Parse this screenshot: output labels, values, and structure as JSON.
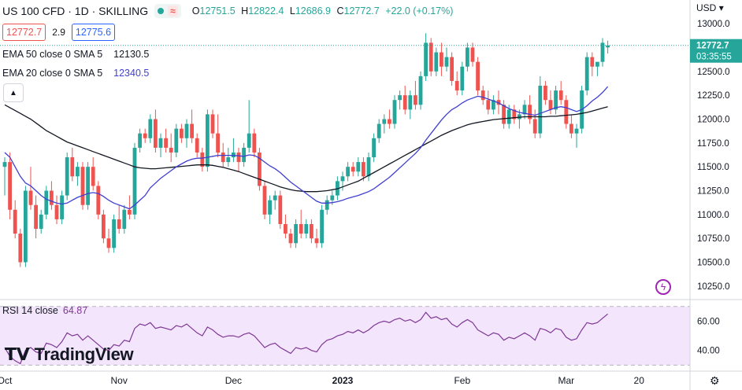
{
  "header": {
    "symbol": "US 100 CFD · 1D · SKILLING",
    "open_label": "O",
    "open": "12751.5",
    "high_label": "H",
    "high": "12822.4",
    "low_label": "L",
    "low": "12686.9",
    "close_label": "C",
    "close": "12772.7",
    "change": "+22.0 (+0.17%)",
    "sell_price": "12772.7",
    "spread": "2.9",
    "buy_price": "12775.6"
  },
  "indicators": {
    "ema50_label": "EMA 50 close 0 SMA 5",
    "ema50_value": "12130.5",
    "ema20_label": "EMA 20 close 0 SMA 5",
    "ema20_value": "12340.5",
    "rsi_label": "RSI 14 close",
    "rsi_value": "64.87"
  },
  "price_axis": {
    "currency": "USD",
    "last_price": "12772.7",
    "countdown": "03:35:55"
  },
  "branding": "TradingView",
  "colors": {
    "up": "#26a69a",
    "down": "#ef5350",
    "ema20": "#3f3fd0",
    "ema50": "#131722",
    "rsi": "#7e3896",
    "rsi_band": "#f3e5fb"
  },
  "chart_data": {
    "type": "candlestick",
    "title": "US 100 CFD · 1D · SKILLING",
    "ylim": [
      10150,
      13100
    ],
    "yticks": [
      10250,
      10500,
      10750,
      11000,
      11250,
      11500,
      11750,
      12000,
      12250,
      12500,
      12750,
      13000
    ],
    "ytick_labels": [
      "10250.0",
      "10500.0",
      "10750.0",
      "11000.0",
      "11250.0",
      "11500.0",
      "11750.0",
      "12000.0",
      "12250.0",
      "12500.0",
      "12750.0",
      "13000.0"
    ],
    "xtick_labels": [
      {
        "label": "Oct",
        "index": 0
      },
      {
        "label": "Nov",
        "index": 22
      },
      {
        "label": "Dec",
        "index": 44
      },
      {
        "label": "2023",
        "index": 65
      },
      {
        "label": "Feb",
        "index": 88
      },
      {
        "label": "Mar",
        "index": 108
      },
      {
        "label": "20",
        "index": 122
      }
    ],
    "ohlc": [
      [
        11500,
        11600,
        11200,
        11550
      ],
      [
        11550,
        11650,
        10950,
        11050
      ],
      [
        11050,
        11150,
        10750,
        10800
      ],
      [
        10800,
        10850,
        10450,
        10500
      ],
      [
        10500,
        11300,
        10450,
        11250
      ],
      [
        11250,
        11500,
        11050,
        11100
      ],
      [
        11100,
        11200,
        10750,
        10850
      ],
      [
        10850,
        11050,
        10800,
        11000
      ],
      [
        11000,
        11300,
        10950,
        11250
      ],
      [
        11250,
        11350,
        11050,
        11100
      ],
      [
        11100,
        11200,
        10900,
        10950
      ],
      [
        10950,
        11250,
        10900,
        11200
      ],
      [
        11200,
        11650,
        11150,
        11600
      ],
      [
        11600,
        11700,
        11350,
        11400
      ],
      [
        11400,
        11550,
        11300,
        11500
      ],
      [
        11500,
        11550,
        11050,
        11100
      ],
      [
        11100,
        11550,
        11050,
        11500
      ],
      [
        11500,
        11600,
        11250,
        11300
      ],
      [
        11300,
        11350,
        10950,
        11000
      ],
      [
        11000,
        11050,
        10700,
        10750
      ],
      [
        10750,
        10850,
        10600,
        10650
      ],
      [
        10650,
        11000,
        10600,
        10950
      ],
      [
        10950,
        11100,
        10800,
        10850
      ],
      [
        10850,
        11100,
        10800,
        11050
      ],
      [
        11050,
        11200,
        10950,
        11000
      ],
      [
        11000,
        11750,
        10950,
        11700
      ],
      [
        11700,
        11900,
        11650,
        11850
      ],
      [
        11850,
        11900,
        11750,
        11800
      ],
      [
        11800,
        12050,
        11750,
        12000
      ],
      [
        12000,
        12100,
        11650,
        11700
      ],
      [
        11700,
        11850,
        11600,
        11800
      ],
      [
        11800,
        11900,
        11650,
        11700
      ],
      [
        11700,
        11850,
        11550,
        11650
      ],
      [
        11650,
        11950,
        11600,
        11900
      ],
      [
        11900,
        11950,
        11750,
        11800
      ],
      [
        11800,
        12000,
        11700,
        11950
      ],
      [
        11950,
        12100,
        11750,
        11800
      ],
      [
        11800,
        11850,
        11600,
        11650
      ],
      [
        11650,
        11700,
        11450,
        11500
      ],
      [
        11500,
        12100,
        11450,
        12050
      ],
      [
        12050,
        12100,
        11800,
        11850
      ],
      [
        11850,
        12050,
        11600,
        11650
      ],
      [
        11650,
        11750,
        11500,
        11550
      ],
      [
        11550,
        11700,
        11500,
        11600
      ],
      [
        11600,
        11800,
        11550,
        11650
      ],
      [
        11650,
        11700,
        11450,
        11550
      ],
      [
        11550,
        11750,
        11500,
        11700
      ],
      [
        11700,
        12200,
        11650,
        11850
      ],
      [
        11850,
        11900,
        11600,
        11650
      ],
      [
        11650,
        11700,
        11250,
        11300
      ],
      [
        11300,
        11350,
        10950,
        11000
      ],
      [
        11000,
        11200,
        10900,
        11150
      ],
      [
        11150,
        11250,
        11050,
        11200
      ],
      [
        11200,
        11250,
        10850,
        10900
      ],
      [
        10900,
        11000,
        10750,
        10800
      ],
      [
        10800,
        10850,
        10650,
        10700
      ],
      [
        10700,
        10950,
        10650,
        10900
      ],
      [
        10900,
        11050,
        10750,
        10800
      ],
      [
        10800,
        10950,
        10750,
        10900
      ],
      [
        10900,
        10950,
        10700,
        10750
      ],
      [
        10750,
        10850,
        10650,
        10700
      ],
      [
        10700,
        11100,
        10650,
        11050
      ],
      [
        11050,
        11200,
        11000,
        11150
      ],
      [
        11150,
        11250,
        11100,
        11200
      ],
      [
        11200,
        11400,
        11150,
        11350
      ],
      [
        11350,
        11450,
        11250,
        11400
      ],
      [
        11400,
        11550,
        11350,
        11500
      ],
      [
        11500,
        11550,
        11400,
        11450
      ],
      [
        11450,
        11600,
        11400,
        11550
      ],
      [
        11550,
        11600,
        11350,
        11400
      ],
      [
        11400,
        11650,
        11350,
        11600
      ],
      [
        11600,
        11850,
        11550,
        11800
      ],
      [
        11800,
        12000,
        11750,
        11950
      ],
      [
        11950,
        12050,
        11850,
        12000
      ],
      [
        12000,
        12100,
        11900,
        11950
      ],
      [
        11950,
        12250,
        11900,
        12200
      ],
      [
        12200,
        12300,
        12100,
        12250
      ],
      [
        12250,
        12350,
        12050,
        12100
      ],
      [
        12100,
        12300,
        12000,
        12250
      ],
      [
        12250,
        12400,
        12100,
        12150
      ],
      [
        12150,
        12500,
        12100,
        12450
      ],
      [
        12450,
        12900,
        12400,
        12800
      ],
      [
        12800,
        12850,
        12450,
        12500
      ],
      [
        12500,
        12750,
        12450,
        12700
      ],
      [
        12700,
        12800,
        12450,
        12550
      ],
      [
        12550,
        12750,
        12500,
        12650
      ],
      [
        12650,
        12700,
        12350,
        12400
      ],
      [
        12400,
        12500,
        12250,
        12300
      ],
      [
        12300,
        12600,
        12250,
        12550
      ],
      [
        12550,
        12800,
        12500,
        12750
      ],
      [
        12750,
        12800,
        12550,
        12600
      ],
      [
        12600,
        12650,
        12250,
        12300
      ],
      [
        12300,
        12350,
        12150,
        12200
      ],
      [
        12200,
        12300,
        12050,
        12100
      ],
      [
        12100,
        12250,
        12050,
        12200
      ],
      [
        12200,
        12300,
        12050,
        12150
      ],
      [
        12150,
        12200,
        11900,
        11950
      ],
      [
        11950,
        12150,
        11900,
        12100
      ],
      [
        12100,
        12150,
        11950,
        12000
      ],
      [
        12000,
        12100,
        11900,
        12050
      ],
      [
        12050,
        12200,
        12000,
        12150
      ],
      [
        12150,
        12250,
        11950,
        12000
      ],
      [
        12000,
        12100,
        11800,
        11850
      ],
      [
        11850,
        12450,
        11800,
        12350
      ],
      [
        12350,
        12400,
        12150,
        12200
      ],
      [
        12200,
        12300,
        12050,
        12100
      ],
      [
        12100,
        12350,
        12050,
        12300
      ],
      [
        12300,
        12400,
        12150,
        12200
      ],
      [
        12200,
        12250,
        11900,
        11950
      ],
      [
        11950,
        12050,
        11800,
        11850
      ],
      [
        11850,
        11950,
        11700,
        11900
      ],
      [
        11900,
        12350,
        11850,
        12300
      ],
      [
        12300,
        12700,
        12250,
        12650
      ],
      [
        12650,
        12700,
        12450,
        12550
      ],
      [
        12550,
        12600,
        12450,
        12600
      ],
      [
        12600,
        12850,
        12550,
        12800
      ],
      [
        12751.5,
        12822.4,
        12686.9,
        12772.7
      ]
    ],
    "series": [
      {
        "name": "EMA 50 close 0 SMA 5",
        "values": [
          12150,
          12120,
          12090,
          12060,
          12030,
          12000,
          11960,
          11920,
          11880,
          11850,
          11820,
          11790,
          11760,
          11740,
          11720,
          11700,
          11680,
          11660,
          11640,
          11620,
          11600,
          11580,
          11560,
          11540,
          11520,
          11500,
          11490,
          11485,
          11480,
          11480,
          11485,
          11490,
          11495,
          11500,
          11505,
          11510,
          11515,
          11520,
          11520,
          11520,
          11515,
          11505,
          11495,
          11480,
          11465,
          11450,
          11430,
          11410,
          11390,
          11370,
          11350,
          11330,
          11310,
          11290,
          11275,
          11260,
          11250,
          11245,
          11240,
          11240,
          11240,
          11245,
          11250,
          11260,
          11270,
          11290,
          11310,
          11330,
          11350,
          11380,
          11410,
          11440,
          11470,
          11500,
          11530,
          11560,
          11590,
          11620,
          11650,
          11680,
          11710,
          11740,
          11770,
          11800,
          11830,
          11855,
          11880,
          11900,
          11920,
          11940,
          11955,
          11965,
          11975,
          11985,
          11995,
          12000,
          12005,
          12010,
          12015,
          12020,
          12025,
          12025,
          12025,
          12025,
          12025,
          12030,
          12030,
          12035,
          12040,
          12045,
          12050,
          12060,
          12070,
          12085,
          12100,
          12115,
          12130.5
        ]
      },
      {
        "name": "EMA 20 close 0 SMA 5",
        "values": [
          11650,
          11600,
          11500,
          11400,
          11330,
          11300,
          11250,
          11200,
          11160,
          11140,
          11120,
          11110,
          11120,
          11150,
          11180,
          11200,
          11220,
          11230,
          11220,
          11190,
          11150,
          11120,
          11100,
          11080,
          11060,
          11100,
          11150,
          11200,
          11280,
          11330,
          11380,
          11420,
          11460,
          11500,
          11530,
          11560,
          11580,
          11590,
          11590,
          11600,
          11610,
          11620,
          11620,
          11620,
          11620,
          11615,
          11610,
          11625,
          11620,
          11590,
          11550,
          11510,
          11480,
          11440,
          11390,
          11340,
          11300,
          11260,
          11220,
          11180,
          11140,
          11120,
          11120,
          11125,
          11135,
          11150,
          11170,
          11185,
          11200,
          11220,
          11240,
          11270,
          11310,
          11350,
          11390,
          11440,
          11490,
          11540,
          11590,
          11640,
          11700,
          11780,
          11850,
          11920,
          11990,
          12050,
          12100,
          12130,
          12170,
          12200,
          12220,
          12240,
          12230,
          12210,
          12190,
          12170,
          12140,
          12110,
          12090,
          12070,
          12060,
          12050,
          12040,
          12060,
          12080,
          12100,
          12120,
          12130,
          12120,
          12100,
          12080,
          12100,
          12140,
          12190,
          12230,
          12280,
          12340.5
        ]
      }
    ],
    "rsi": {
      "name": "RSI 14 close",
      "ylim": [
        27,
        72
      ],
      "yticks": [
        40,
        60
      ],
      "ytick_labels": [
        "40.00",
        "60.00"
      ],
      "band": [
        30,
        70
      ],
      "values": [
        42,
        36,
        33,
        31,
        40,
        42,
        39,
        38,
        45,
        44,
        42,
        46,
        52,
        50,
        51,
        47,
        50,
        47,
        44,
        41,
        40,
        44,
        43,
        47,
        46,
        55,
        58,
        57,
        59,
        55,
        56,
        55,
        54,
        57,
        56,
        58,
        55,
        52,
        50,
        56,
        54,
        51,
        49,
        50,
        50,
        49,
        51,
        52,
        50,
        46,
        42,
        44,
        45,
        42,
        40,
        38,
        42,
        41,
        42,
        40,
        39,
        44,
        47,
        48,
        50,
        51,
        53,
        52,
        54,
        52,
        54,
        57,
        59,
        60,
        59,
        61,
        62,
        60,
        61,
        59,
        61,
        66,
        62,
        63,
        61,
        62,
        58,
        56,
        59,
        61,
        59,
        54,
        52,
        50,
        52,
        51,
        47,
        49,
        48,
        50,
        52,
        50,
        47,
        55,
        54,
        52,
        55,
        54,
        49,
        47,
        48,
        54,
        59,
        58,
        59,
        62,
        64.87
      ]
    }
  }
}
